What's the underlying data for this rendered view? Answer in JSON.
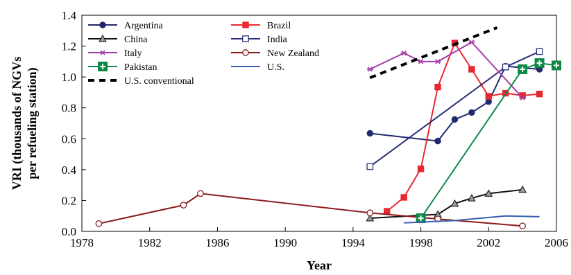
{
  "chart_data": {
    "type": "line",
    "title": "",
    "xlabel": "Year",
    "ylabel": [
      "VRI (thousands of NGVs",
      "per refueling station)"
    ],
    "xlim": [
      1978,
      2006
    ],
    "ylim": [
      0,
      1.4
    ],
    "xticks": [
      1978,
      1982,
      1986,
      1990,
      1994,
      1998,
      2002,
      2006
    ],
    "yticks": [
      0.0,
      0.2,
      0.4,
      0.6,
      0.8,
      1.0,
      1.2,
      1.4
    ],
    "xtick_labels": [
      "1978",
      "1982",
      "1986",
      "1990",
      "1994",
      "1998",
      "2002",
      "2006"
    ],
    "ytick_labels": [
      "0.0",
      "0.2",
      "0.4",
      "0.6",
      "0.8",
      "1.0",
      "1.2",
      "1.4"
    ],
    "grid": false,
    "legend_position": "top-left",
    "series": [
      {
        "name": "Argentina",
        "color": "#1f2a6e",
        "marker": "filled-circle",
        "dash": "solid",
        "x": [
          1995,
          1999,
          2000,
          2001,
          2002,
          2003,
          2004,
          2005
        ],
        "y": [
          0.635,
          0.585,
          0.725,
          0.77,
          0.84,
          1.07,
          1.06,
          1.05
        ]
      },
      {
        "name": "Brazil",
        "color": "#e8282e",
        "marker": "filled-square",
        "dash": "solid",
        "x": [
          1996,
          1997,
          1998,
          1999,
          2000,
          2001,
          2002,
          2003,
          2004,
          2005
        ],
        "y": [
          0.13,
          0.22,
          0.405,
          0.935,
          1.22,
          1.05,
          0.875,
          0.895,
          0.88,
          0.89
        ]
      },
      {
        "name": "China",
        "color": "#111111",
        "marker": "gray-triangle",
        "dash": "solid",
        "x": [
          1995,
          1999,
          2000,
          2001,
          2002,
          2004
        ],
        "y": [
          0.085,
          0.11,
          0.18,
          0.215,
          0.245,
          0.27
        ]
      },
      {
        "name": "India",
        "color": "#27307a",
        "marker": "open-square",
        "dash": "solid",
        "x": [
          1995,
          2003,
          2005
        ],
        "y": [
          0.42,
          1.065,
          1.165
        ]
      },
      {
        "name": "Italy",
        "color": "#a43aa8",
        "marker": "star",
        "dash": "solid",
        "x": [
          1995,
          1997,
          1998,
          1999,
          2001,
          2004
        ],
        "y": [
          1.05,
          1.155,
          1.1,
          1.1,
          1.225,
          0.865
        ]
      },
      {
        "name": "New Zealand",
        "color": "#8b1a1a",
        "marker": "open-circle",
        "dash": "solid",
        "x": [
          1979,
          1984,
          1985,
          1995,
          1999,
          2004
        ],
        "y": [
          0.05,
          0.17,
          0.245,
          0.12,
          0.08,
          0.035
        ]
      },
      {
        "name": "Pakistan",
        "color": "#0c8a45",
        "marker": "plus-square",
        "dash": "solid",
        "x": [
          1998,
          2004,
          2005,
          2006
        ],
        "y": [
          0.085,
          1.05,
          1.09,
          1.075
        ]
      },
      {
        "name": "U.S.",
        "color": "#3a5fb0",
        "marker": "none",
        "dash": "solid",
        "x": [
          1997,
          2000,
          2003,
          2005
        ],
        "y": [
          0.055,
          0.07,
          0.1,
          0.095
        ]
      },
      {
        "name": "U.S. conventional",
        "color": "#000000",
        "marker": "none",
        "dash": "dashed",
        "x": [
          1995,
          2002.5
        ],
        "y": [
          0.995,
          1.32
        ]
      }
    ]
  }
}
